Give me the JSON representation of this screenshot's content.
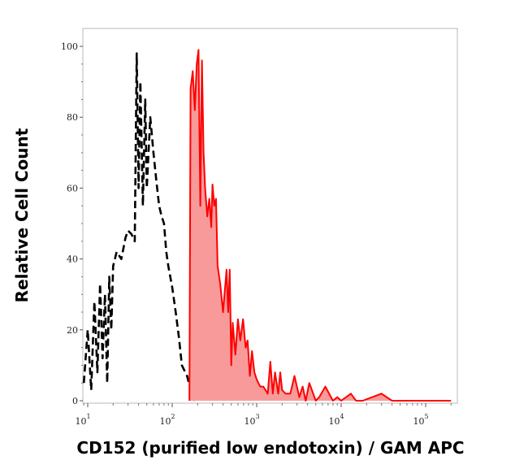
{
  "chart_data": {
    "type": "area",
    "title": "",
    "xlabel": "CD152 (purified low endotoxin) / GAM APC",
    "ylabel": "Relative Cell Count",
    "x_scale": "log",
    "xlim": [
      8.7,
      235000
    ],
    "ylim": [
      0,
      105
    ],
    "grid": false,
    "x_ticks": [
      {
        "value": 10,
        "base": "10",
        "exp": "1"
      },
      {
        "value": 100,
        "base": "10",
        "exp": "2"
      },
      {
        "value": 1000,
        "base": "10",
        "exp": "3"
      },
      {
        "value": 10000,
        "base": "10",
        "exp": "4"
      },
      {
        "value": 100000,
        "base": "10",
        "exp": "5"
      }
    ],
    "y_ticks": [
      0,
      20,
      40,
      60,
      80,
      100
    ],
    "series": [
      {
        "style": "dashed",
        "color": "#000000",
        "fill": "none",
        "x": [
          9,
          10,
          11,
          12,
          13,
          14,
          15,
          16,
          17,
          18,
          19,
          20,
          22,
          25,
          28,
          30,
          33,
          36,
          38,
          40,
          42,
          45,
          48,
          50,
          55,
          60,
          65,
          70,
          75,
          80,
          85,
          90,
          100,
          110,
          120,
          130,
          150,
          170,
          185
        ],
        "y": [
          5,
          20,
          3,
          28,
          8,
          33,
          12,
          30,
          5,
          35,
          20,
          38,
          42,
          40,
          46,
          48,
          47,
          45,
          98,
          60,
          90,
          55,
          85,
          60,
          80,
          70,
          62,
          55,
          52,
          50,
          42,
          38,
          32,
          25,
          18,
          10,
          7,
          2,
          0
        ]
      },
      {
        "style": "solid",
        "color": "#ff0000",
        "fill": "#f99a9a",
        "x": [
          160,
          165,
          175,
          185,
          195,
          205,
          215,
          225,
          235,
          245,
          260,
          275,
          290,
          300,
          315,
          330,
          345,
          370,
          400,
          440,
          460,
          480,
          500,
          520,
          560,
          600,
          640,
          690,
          740,
          780,
          830,
          880,
          940,
          1000,
          1100,
          1200,
          1350,
          1450,
          1550,
          1650,
          1800,
          1900,
          2000,
          2200,
          2500,
          2800,
          3200,
          3500,
          3800,
          4200,
          5000,
          5500,
          6500,
          8000,
          9000,
          10000,
          13000,
          15000,
          18000,
          30000,
          40000,
          45000,
          200000
        ],
        "y": [
          0,
          88,
          93,
          82,
          95,
          99,
          55,
          96,
          70,
          60,
          52,
          57,
          49,
          61,
          55,
          57,
          38,
          33,
          25,
          37,
          25,
          37,
          10,
          22,
          13,
          23,
          17,
          23,
          15,
          17,
          7,
          14,
          8,
          6,
          4,
          4,
          2,
          11,
          2,
          8,
          2,
          8,
          3,
          2,
          2,
          7,
          1,
          4,
          0,
          5,
          0,
          1,
          4,
          0,
          1,
          0,
          2,
          0,
          0,
          2,
          0,
          0,
          0
        ]
      }
    ]
  }
}
